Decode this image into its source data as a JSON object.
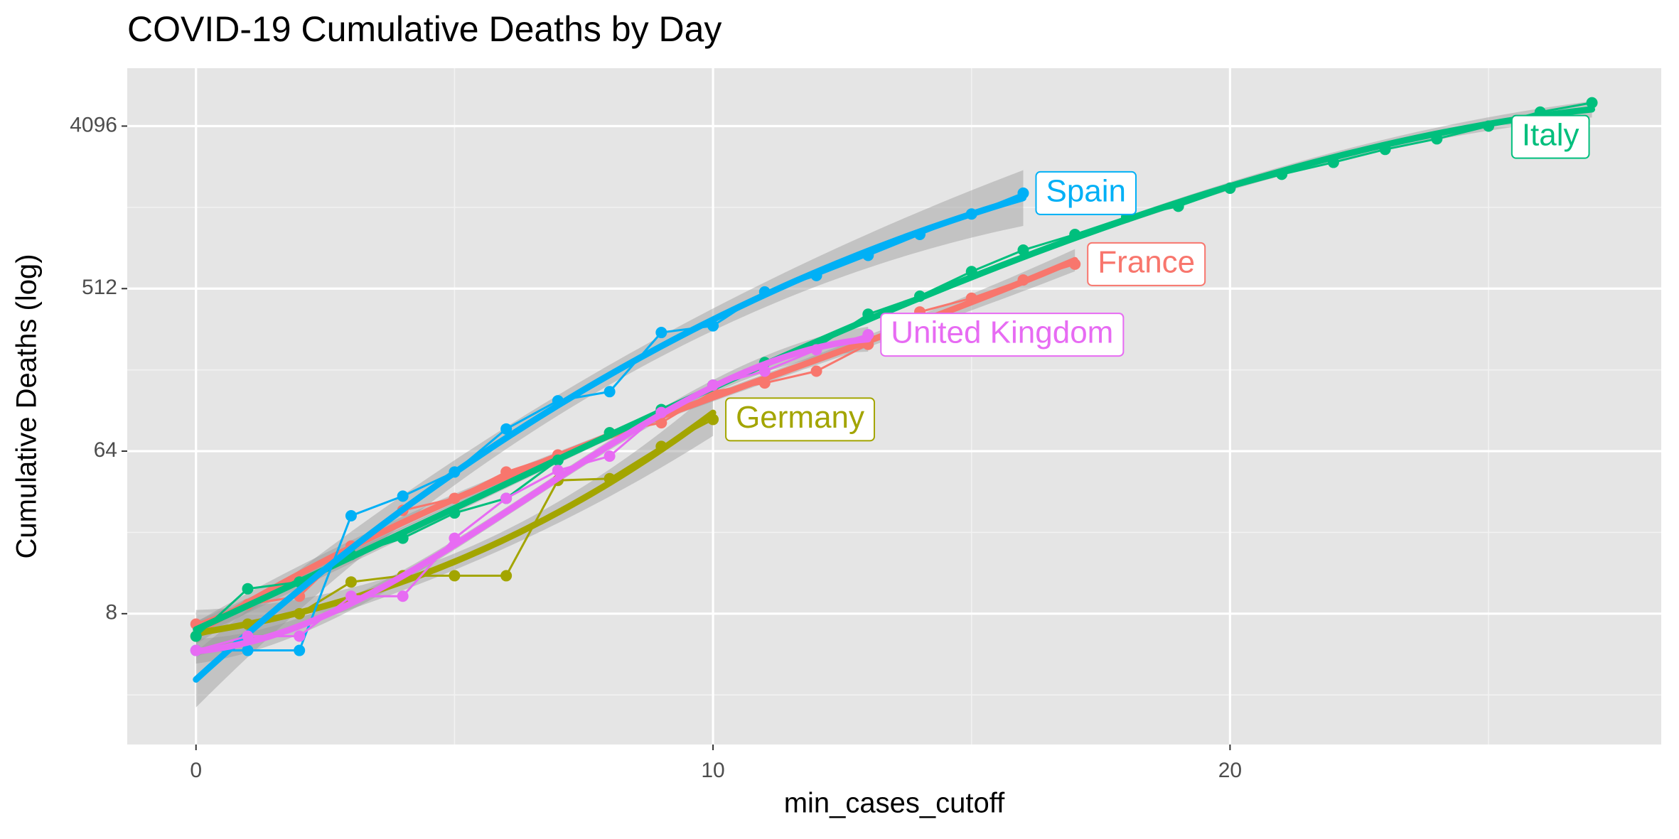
{
  "chart_data": {
    "type": "line",
    "title": "COVID-19 Cumulative Deaths by Day",
    "x_label": "min_cases_cutoff",
    "y_label": "Cumulative Deaths (log)",
    "y_log_base": 2,
    "grid": true,
    "x": [
      0,
      1,
      2,
      3,
      4,
      5,
      6,
      7,
      8,
      9,
      10,
      11,
      12,
      13,
      14,
      15,
      16,
      17,
      18,
      19,
      20,
      21,
      22,
      23,
      24,
      25,
      26,
      27
    ],
    "xlim": [
      -1.33,
      28.34
    ],
    "xticks": [
      0,
      10,
      20
    ],
    "ylim": [
      1.5,
      8590
    ],
    "yticks": [
      8,
      64,
      512,
      4096
    ],
    "series": [
      {
        "name": "France",
        "color": "#F8766D",
        "values": [
          7,
          9,
          10,
          19,
          30,
          35,
          49,
          61,
          81,
          92,
          137,
          153,
          178,
          251,
          380,
          453,
          572,
          700,
          null,
          null,
          null,
          null,
          null,
          null,
          null,
          null,
          null,
          null
        ]
      },
      {
        "name": "Germany",
        "color": "#A3A500",
        "values": [
          6,
          7,
          8,
          12,
          13,
          13,
          13,
          44,
          45,
          68,
          96,
          null,
          null,
          null,
          null,
          null,
          null,
          null,
          null,
          null,
          null,
          null,
          null,
          null,
          null,
          null,
          null,
          null
        ]
      },
      {
        "name": "Italy",
        "color": "#00BF7D",
        "values": [
          6,
          11,
          12,
          17,
          21,
          29,
          35,
          57,
          81,
          109,
          149,
          199,
          241,
          369,
          465,
          637,
          838,
          1024,
          1278,
          1468,
          1850,
          2210,
          2575,
          3040,
          3480,
          4096,
          4900,
          5520
        ]
      },
      {
        "name": "Spain",
        "color": "#00B0F6",
        "values": [
          5,
          5,
          5,
          28,
          36,
          49,
          85,
          122,
          137,
          292,
          318,
          491,
          605,
          783,
          1024,
          1330,
          1736,
          null,
          null,
          null,
          null,
          null,
          null,
          null,
          null,
          null,
          null,
          null
        ]
      },
      {
        "name": "United Kingdom",
        "color": "#E76BF3",
        "values": [
          5,
          6,
          6,
          10,
          10,
          21,
          35,
          50,
          60,
          105,
          149,
          178,
          234,
          284,
          null,
          null,
          null,
          null,
          null,
          null,
          null,
          null,
          null,
          null,
          null,
          null,
          null,
          null
        ]
      }
    ]
  }
}
